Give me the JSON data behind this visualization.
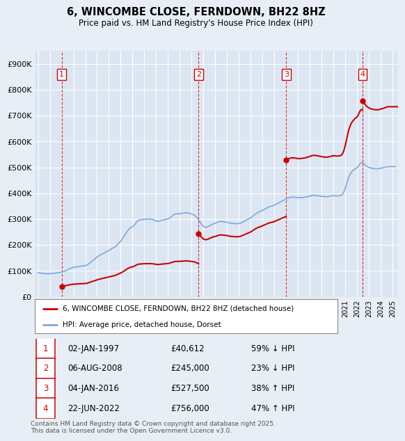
{
  "title": "6, WINCOMBE CLOSE, FERNDOWN, BH22 8HZ",
  "subtitle": "Price paid vs. HM Land Registry's House Price Index (HPI)",
  "background_color": "#e8eef5",
  "plot_bg_color": "#dce6f2",
  "ylim": [
    0,
    950000
  ],
  "yticks": [
    0,
    100000,
    200000,
    300000,
    400000,
    500000,
    600000,
    700000,
    800000,
    900000
  ],
  "ytick_labels": [
    "£0",
    "£100K",
    "£200K",
    "£300K",
    "£400K",
    "£500K",
    "£600K",
    "£700K",
    "£800K",
    "£900K"
  ],
  "xlim_start": 1994.75,
  "xlim_end": 2025.5,
  "sale_color": "#cc0000",
  "hpi_color": "#7aaadd",
  "sale_label": "6, WINCOMBE CLOSE, FERNDOWN, BH22 8HZ (detached house)",
  "hpi_label": "HPI: Average price, detached house, Dorset",
  "transactions": [
    {
      "date_num": 1997.01,
      "price": 40612,
      "label": "1"
    },
    {
      "date_num": 2008.59,
      "price": 245000,
      "label": "2"
    },
    {
      "date_num": 2016.01,
      "price": 527500,
      "label": "3"
    },
    {
      "date_num": 2022.47,
      "price": 756000,
      "label": "4"
    }
  ],
  "table_rows": [
    {
      "num": "1",
      "date": "02-JAN-1997",
      "price": "£40,612",
      "hpi_diff": "59% ↓ HPI"
    },
    {
      "num": "2",
      "date": "06-AUG-2008",
      "price": "£245,000",
      "hpi_diff": "23% ↓ HPI"
    },
    {
      "num": "3",
      "date": "04-JAN-2016",
      "price": "£527,500",
      "hpi_diff": "38% ↑ HPI"
    },
    {
      "num": "4",
      "date": "22-JUN-2022",
      "price": "£756,000",
      "hpi_diff": "47% ↑ HPI"
    }
  ],
  "footer": "Contains HM Land Registry data © Crown copyright and database right 2025.\nThis data is licensed under the Open Government Licence v3.0.",
  "hpi_data": {
    "years": [
      1995.0,
      1995.08,
      1995.17,
      1995.25,
      1995.33,
      1995.42,
      1995.5,
      1995.58,
      1995.67,
      1995.75,
      1995.83,
      1995.92,
      1996.0,
      1996.08,
      1996.17,
      1996.25,
      1996.33,
      1996.42,
      1996.5,
      1996.58,
      1996.67,
      1996.75,
      1996.83,
      1996.92,
      1997.0,
      1997.08,
      1997.17,
      1997.25,
      1997.33,
      1997.42,
      1997.5,
      1997.58,
      1997.67,
      1997.75,
      1997.83,
      1997.92,
      1998.0,
      1998.08,
      1998.17,
      1998.25,
      1998.33,
      1998.42,
      1998.5,
      1998.58,
      1998.67,
      1998.75,
      1998.83,
      1998.92,
      1999.0,
      1999.08,
      1999.17,
      1999.25,
      1999.33,
      1999.42,
      1999.5,
      1999.58,
      1999.67,
      1999.75,
      1999.83,
      1999.92,
      2000.0,
      2000.08,
      2000.17,
      2000.25,
      2000.33,
      2000.42,
      2000.5,
      2000.58,
      2000.67,
      2000.75,
      2000.83,
      2000.92,
      2001.0,
      2001.08,
      2001.17,
      2001.25,
      2001.33,
      2001.42,
      2001.5,
      2001.58,
      2001.67,
      2001.75,
      2001.83,
      2001.92,
      2002.0,
      2002.08,
      2002.17,
      2002.25,
      2002.33,
      2002.42,
      2002.5,
      2002.58,
      2002.67,
      2002.75,
      2002.83,
      2002.92,
      2003.0,
      2003.08,
      2003.17,
      2003.25,
      2003.33,
      2003.42,
      2003.5,
      2003.58,
      2003.67,
      2003.75,
      2003.83,
      2003.92,
      2004.0,
      2004.08,
      2004.17,
      2004.25,
      2004.33,
      2004.42,
      2004.5,
      2004.58,
      2004.67,
      2004.75,
      2004.83,
      2004.92,
      2005.0,
      2005.08,
      2005.17,
      2005.25,
      2005.33,
      2005.42,
      2005.5,
      2005.58,
      2005.67,
      2005.75,
      2005.83,
      2005.92,
      2006.0,
      2006.08,
      2006.17,
      2006.25,
      2006.33,
      2006.42,
      2006.5,
      2006.58,
      2006.67,
      2006.75,
      2006.83,
      2006.92,
      2007.0,
      2007.08,
      2007.17,
      2007.25,
      2007.33,
      2007.42,
      2007.5,
      2007.58,
      2007.67,
      2007.75,
      2007.83,
      2007.92,
      2008.0,
      2008.08,
      2008.17,
      2008.25,
      2008.33,
      2008.42,
      2008.5,
      2008.58,
      2008.67,
      2008.75,
      2008.83,
      2008.92,
      2009.0,
      2009.08,
      2009.17,
      2009.25,
      2009.33,
      2009.42,
      2009.5,
      2009.58,
      2009.67,
      2009.75,
      2009.83,
      2009.92,
      2010.0,
      2010.08,
      2010.17,
      2010.25,
      2010.33,
      2010.42,
      2010.5,
      2010.58,
      2010.67,
      2010.75,
      2010.83,
      2010.92,
      2011.0,
      2011.08,
      2011.17,
      2011.25,
      2011.33,
      2011.42,
      2011.5,
      2011.58,
      2011.67,
      2011.75,
      2011.83,
      2011.92,
      2012.0,
      2012.08,
      2012.17,
      2012.25,
      2012.33,
      2012.42,
      2012.5,
      2012.58,
      2012.67,
      2012.75,
      2012.83,
      2012.92,
      2013.0,
      2013.08,
      2013.17,
      2013.25,
      2013.33,
      2013.42,
      2013.5,
      2013.58,
      2013.67,
      2013.75,
      2013.83,
      2013.92,
      2014.0,
      2014.08,
      2014.17,
      2014.25,
      2014.33,
      2014.42,
      2014.5,
      2014.58,
      2014.67,
      2014.75,
      2014.83,
      2014.92,
      2015.0,
      2015.08,
      2015.17,
      2015.25,
      2015.33,
      2015.42,
      2015.5,
      2015.58,
      2015.67,
      2015.75,
      2015.83,
      2015.92,
      2016.0,
      2016.08,
      2016.17,
      2016.25,
      2016.33,
      2016.42,
      2016.5,
      2016.58,
      2016.67,
      2016.75,
      2016.83,
      2016.92,
      2017.0,
      2017.08,
      2017.17,
      2017.25,
      2017.33,
      2017.42,
      2017.5,
      2017.58,
      2017.67,
      2017.75,
      2017.83,
      2017.92,
      2018.0,
      2018.08,
      2018.17,
      2018.25,
      2018.33,
      2018.42,
      2018.5,
      2018.58,
      2018.67,
      2018.75,
      2018.83,
      2018.92,
      2019.0,
      2019.08,
      2019.17,
      2019.25,
      2019.33,
      2019.42,
      2019.5,
      2019.58,
      2019.67,
      2019.75,
      2019.83,
      2019.92,
      2020.0,
      2020.08,
      2020.17,
      2020.25,
      2020.33,
      2020.42,
      2020.5,
      2020.58,
      2020.67,
      2020.75,
      2020.83,
      2020.92,
      2021.0,
      2021.08,
      2021.17,
      2021.25,
      2021.33,
      2021.42,
      2021.5,
      2021.58,
      2021.67,
      2021.75,
      2021.83,
      2021.92,
      2022.0,
      2022.08,
      2022.17,
      2022.25,
      2022.33,
      2022.42,
      2022.5,
      2022.58,
      2022.67,
      2022.75,
      2022.83,
      2022.92,
      2023.0,
      2023.08,
      2023.17,
      2023.25,
      2023.33,
      2023.42,
      2023.5,
      2023.58,
      2023.67,
      2023.75,
      2023.83,
      2023.92,
      2024.0,
      2024.08,
      2024.17,
      2024.25,
      2024.33,
      2024.42,
      2024.5,
      2024.58,
      2024.67,
      2024.75,
      2024.83,
      2024.92,
      2025.0,
      2025.08,
      2025.17,
      2025.25
    ],
    "values": [
      93000,
      92500,
      92000,
      91500,
      91000,
      90500,
      90000,
      89700,
      89400,
      89100,
      88900,
      89000,
      89200,
      89500,
      90000,
      90500,
      91000,
      91500,
      92000,
      92500,
      93000,
      93500,
      94000,
      94500,
      95000,
      96000,
      97500,
      99000,
      100500,
      102000,
      104000,
      106000,
      108000,
      110000,
      111500,
      113000,
      114000,
      114500,
      115000,
      115500,
      116000,
      116500,
      117000,
      117500,
      118000,
      118500,
      119000,
      119500,
      120000,
      121000,
      123000,
      126000,
      129000,
      132000,
      135000,
      138000,
      141000,
      144000,
      147000,
      150000,
      153000,
      156000,
      158500,
      161000,
      163000,
      165000,
      167000,
      169000,
      171000,
      173000,
      175000,
      177000,
      179000,
      181000,
      183500,
      186000,
      188000,
      190500,
      193000,
      196000,
      199000,
      203000,
      207000,
      211000,
      215000,
      220000,
      225000,
      231000,
      237000,
      243000,
      249000,
      255000,
      260000,
      264000,
      267000,
      269000,
      271000,
      274000,
      278000,
      283000,
      288000,
      292000,
      295000,
      296000,
      297000,
      298000,
      298500,
      299000,
      299000,
      299500,
      300000,
      300000,
      300500,
      300500,
      300000,
      300000,
      299000,
      298000,
      297000,
      295000,
      293000,
      292000,
      292000,
      293000,
      294000,
      295000,
      296000,
      297000,
      298000,
      298500,
      299000,
      300000,
      301000,
      303000,
      305000,
      308000,
      311000,
      314000,
      317000,
      319000,
      320000,
      320500,
      321000,
      321000,
      321000,
      321500,
      322000,
      323000,
      323500,
      324000,
      325000,
      325000,
      324000,
      323000,
      322000,
      321000,
      320000,
      319000,
      317000,
      315000,
      312000,
      308000,
      304000,
      299000,
      293000,
      287000,
      281000,
      276000,
      272000,
      270000,
      269000,
      269000,
      270000,
      272000,
      274000,
      276000,
      278000,
      280000,
      282000,
      283000,
      284000,
      285000,
      287000,
      289000,
      290000,
      291000,
      291000,
      291000,
      290000,
      290000,
      289000,
      289000,
      288000,
      287000,
      286000,
      285000,
      284000,
      284000,
      283500,
      283000,
      283000,
      282500,
      282500,
      282500,
      283000,
      284000,
      285000,
      287000,
      289000,
      291000,
      293000,
      295000,
      297000,
      299000,
      301000,
      303000,
      305000,
      308000,
      311000,
      314000,
      317000,
      320000,
      323000,
      325000,
      327000,
      328500,
      330000,
      332000,
      334000,
      336000,
      338000,
      340000,
      342000,
      344000,
      346000,
      348000,
      349000,
      350000,
      351000,
      352000,
      354000,
      356000,
      358000,
      360000,
      362000,
      364000,
      366000,
      368000,
      370000,
      372000,
      374000,
      376000,
      378000,
      380000,
      382000,
      383000,
      384000,
      384500,
      385000,
      385000,
      385000,
      384500,
      384000,
      383500,
      383000,
      383000,
      383000,
      383000,
      383500,
      384000,
      384500,
      385000,
      385500,
      386000,
      387000,
      388000,
      389000,
      390000,
      391000,
      391500,
      392000,
      392000,
      391500,
      391000,
      390500,
      390000,
      389500,
      389000,
      388500,
      388000,
      387500,
      387000,
      387000,
      387000,
      387000,
      387500,
      388000,
      389000,
      390000,
      390500,
      391000,
      391000,
      390500,
      390000,
      390000,
      390000,
      390500,
      391000,
      392000,
      395000,
      400000,
      408000,
      418000,
      430000,
      443000,
      455000,
      465000,
      473000,
      479000,
      484000,
      488000,
      491000,
      494000,
      496000,
      498000,
      502000,
      508000,
      514000,
      518000,
      519000,
      517000,
      514000,
      510000,
      507000,
      504000,
      502000,
      500000,
      499000,
      498000,
      497000,
      496000,
      496000,
      495500,
      495000,
      495000,
      495000,
      495000,
      496000,
      497000,
      497500,
      498000,
      499000,
      500000,
      501000,
      502000,
      502500,
      503000,
      503000,
      503000,
      503000,
      503000,
      503000,
      503000,
      503000
    ]
  }
}
